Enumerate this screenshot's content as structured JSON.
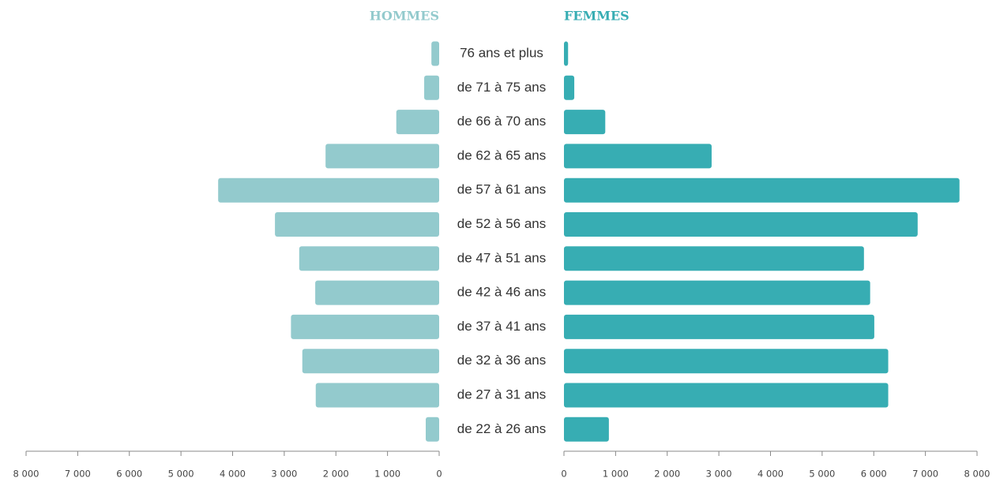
{
  "chart_data": {
    "type": "pyramid",
    "categories": [
      "76 ans et plus",
      "de 71 à 75 ans",
      "de 66 à 70 ans",
      "de 62 à 65 ans",
      "de 57 à 61 ans",
      "de 52 à 56 ans",
      "de 47 à 51 ans",
      "de 42 à 46 ans",
      "de 37 à 41 ans",
      "de 32 à 36 ans",
      "de 27 à 31 ans",
      "de 22 à 26 ans"
    ],
    "series": [
      {
        "name": "HOMMES",
        "color": "#93cacd",
        "side": "left",
        "values": [
          150,
          290,
          830,
          2200,
          4280,
          3180,
          2710,
          2400,
          2870,
          2650,
          2390,
          260
        ]
      },
      {
        "name": "FEMMES",
        "color": "#37adb3",
        "side": "right",
        "values": [
          80,
          200,
          800,
          2860,
          7660,
          6850,
          5810,
          5930,
          6010,
          6280,
          6280,
          870
        ]
      }
    ],
    "xlim": [
      0,
      8000
    ],
    "xticks": [
      0,
      {
        "value": 1000,
        "label": "1 000"
      },
      {
        "value": 2000,
        "label": "2 000"
      },
      {
        "value": 3000,
        "label": "3 000"
      },
      {
        "value": 4000,
        "label": "4 000"
      },
      {
        "value": 5000,
        "label": "5 000"
      },
      {
        "value": 6000,
        "label": "6 000"
      },
      {
        "value": 7000,
        "label": "7 000"
      },
      {
        "value": 8000,
        "label": "8 000"
      }
    ]
  }
}
